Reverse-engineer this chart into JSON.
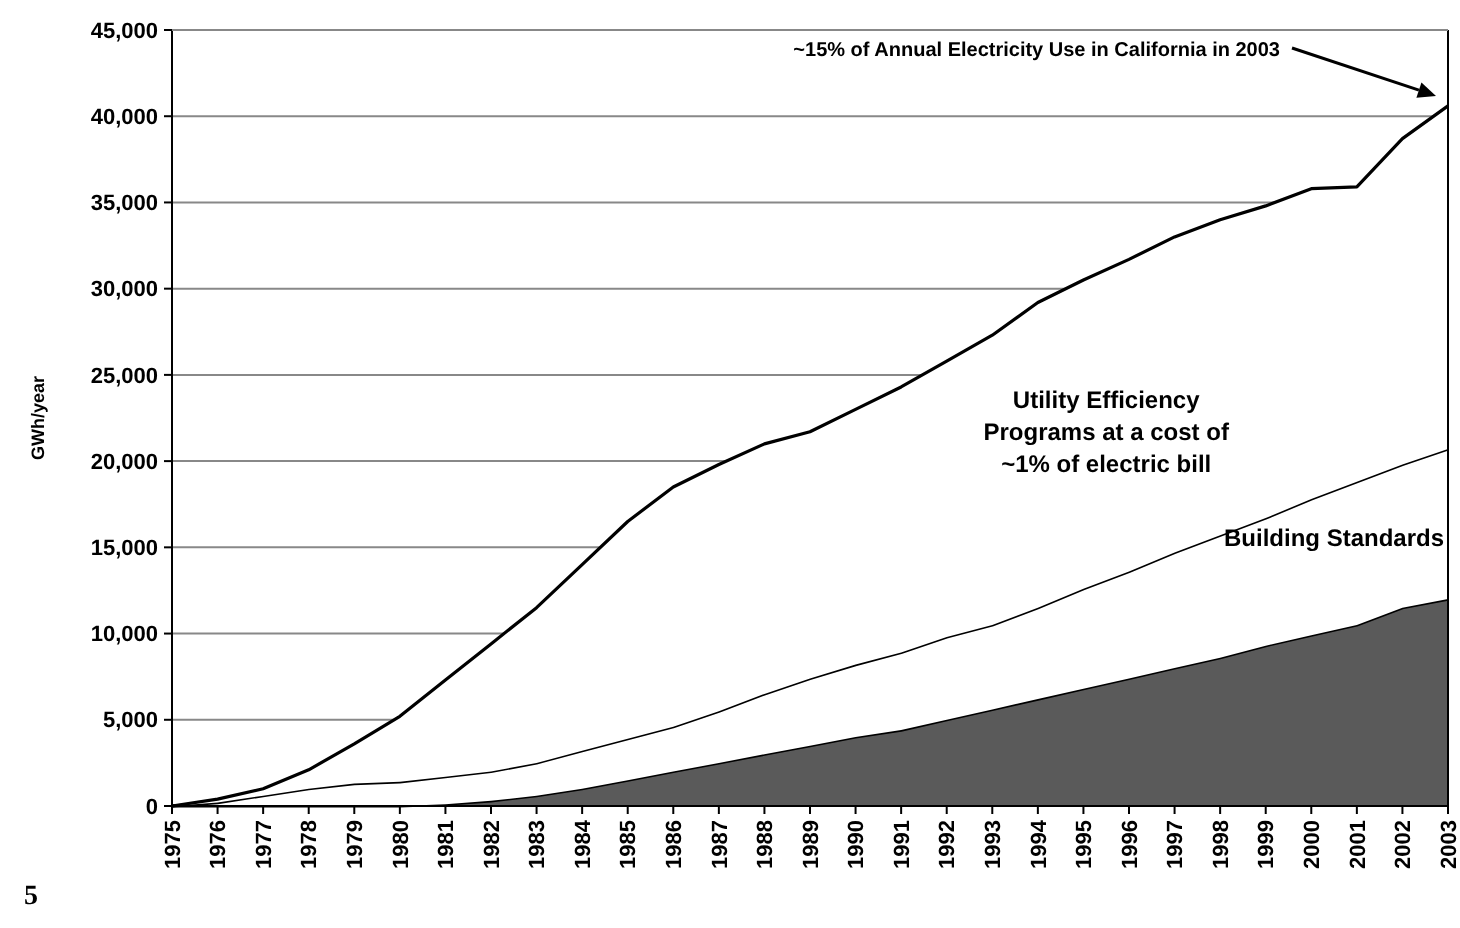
{
  "chart_data": {
    "type": "area",
    "stacked": true,
    "ylabel": "GWh/year",
    "categories": [
      "1975",
      "1976",
      "1977",
      "1978",
      "1979",
      "1980",
      "1981",
      "1982",
      "1983",
      "1984",
      "1985",
      "1986",
      "1987",
      "1988",
      "1989",
      "1990",
      "1991",
      "1992",
      "1993",
      "1994",
      "1995",
      "1996",
      "1997",
      "1998",
      "1999",
      "2000",
      "2001",
      "2002",
      "2003"
    ],
    "series": [
      {
        "color": "#5a5a5a",
        "values": [
          0,
          0,
          0,
          0,
          0,
          0,
          100,
          300,
          600,
          1000,
          1500,
          2000,
          2500,
          3000,
          3500,
          4000,
          4400,
          5000,
          5600,
          6200,
          6800,
          7400,
          8000,
          8600,
          9300,
          9900,
          10500,
          11500,
          12000
        ]
      },
      {
        "name": "Building Standards",
        "color": "#ffffff",
        "values": [
          0,
          200,
          600,
          1000,
          1300,
          1400,
          1600,
          1700,
          1900,
          2200,
          2400,
          2600,
          3000,
          3500,
          3900,
          4200,
          4500,
          4800,
          4900,
          5300,
          5800,
          6200,
          6700,
          7100,
          7400,
          7900,
          8300,
          8300,
          8700
        ]
      },
      {
        "name": "Utility Efficiency Programs at a cost of ~1% of electric bill",
        "color": "#ffffff",
        "values": [
          0,
          200,
          400,
          1100,
          2300,
          3800,
          5600,
          7400,
          9000,
          10800,
          12600,
          13900,
          14300,
          14500,
          14300,
          14800,
          15400,
          16000,
          16800,
          17700,
          17900,
          18100,
          18300,
          18300,
          18100,
          18000,
          17100,
          18900,
          19900
        ]
      }
    ],
    "ylim": [
      0,
      45000
    ],
    "yticks": [
      {
        "value": 0,
        "label": "0"
      },
      {
        "value": 5000,
        "label": "5,000"
      },
      {
        "value": 10000,
        "label": "10,000"
      },
      {
        "value": 15000,
        "label": "15,000"
      },
      {
        "value": 20000,
        "label": "20,000"
      },
      {
        "value": 25000,
        "label": "25,000"
      },
      {
        "value": 30000,
        "label": "30,000"
      },
      {
        "value": 35000,
        "label": "35,000"
      },
      {
        "value": 40000,
        "label": "40,000"
      },
      {
        "value": 45000,
        "label": "45,000"
      }
    ],
    "grid": "y",
    "annotations": [
      "~15% of Annual Electricity Use in California in 2003",
      "5"
    ]
  }
}
